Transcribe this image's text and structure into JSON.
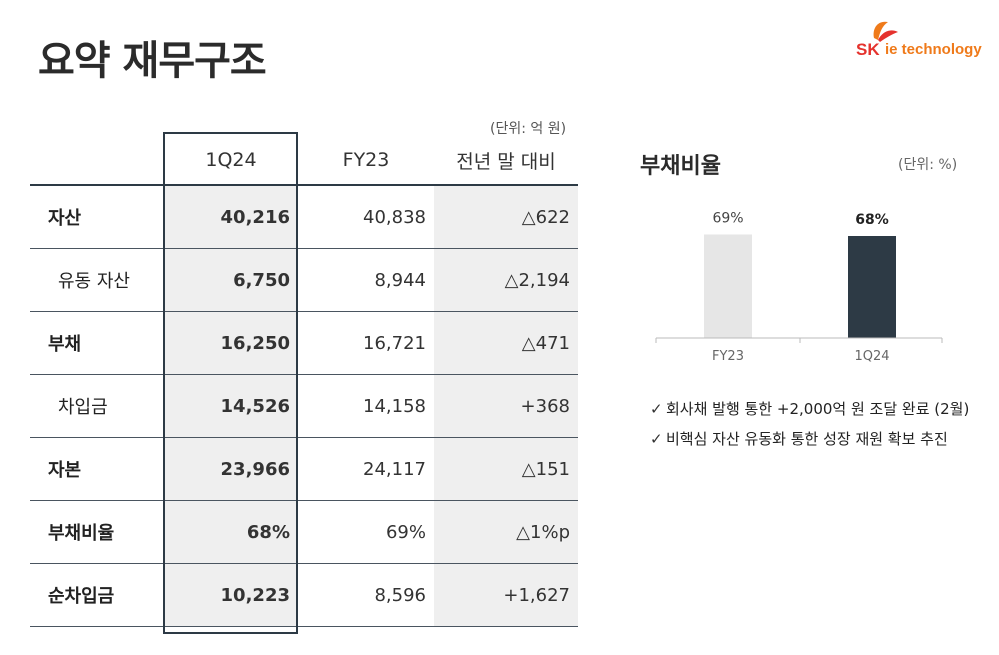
{
  "title": "요약 재무구조",
  "logo": {
    "brand": "SK",
    "suffix": "ie technology"
  },
  "table": {
    "unit": "(단위: 억 원)",
    "headers": [
      "",
      "1Q24",
      "FY23",
      "전년 말 대비"
    ],
    "rows": [
      {
        "label": "자산",
        "sub": false,
        "q": "40,216",
        "fy": "40,838",
        "diff": "△622"
      },
      {
        "label": "유동 자산",
        "sub": true,
        "q": "6,750",
        "fy": "8,944",
        "diff": "△2,194"
      },
      {
        "label": "부채",
        "sub": false,
        "q": "16,250",
        "fy": "16,721",
        "diff": "△471"
      },
      {
        "label": "차입금",
        "sub": true,
        "q": "14,526",
        "fy": "14,158",
        "diff": "+368"
      },
      {
        "label": "자본",
        "sub": false,
        "q": "23,966",
        "fy": "24,117",
        "diff": "△151"
      },
      {
        "label": "부채비율",
        "sub": false,
        "q": "68%",
        "fy": "69%",
        "diff": "△1%p"
      },
      {
        "label": "순차입금",
        "sub": false,
        "q": "10,223",
        "fy": "8,596",
        "diff": "+1,627"
      }
    ]
  },
  "chart_data": {
    "type": "bar",
    "title": "부채비율",
    "unit": "(단위: %)",
    "categories": [
      "FY23",
      "1Q24"
    ],
    "values": [
      69,
      68
    ],
    "value_labels": [
      "69%",
      "68%"
    ],
    "colors": [
      "#e6e6e6",
      "#2d3a45"
    ],
    "grid": false
  },
  "notes": [
    "회사채 발행 통한 +2,000억 원 조달 완료 (2월)",
    "비핵심 자산 유동화 통한 성장 재원 확보 추진"
  ]
}
